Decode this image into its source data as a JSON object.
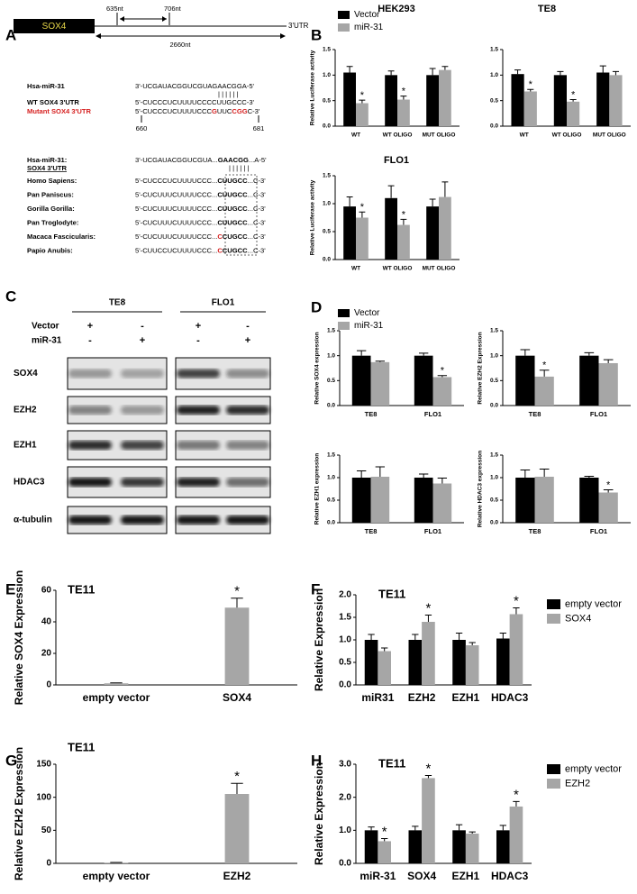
{
  "panel_labels": [
    "A",
    "B",
    "C",
    "D",
    "E",
    "F",
    "G",
    "H"
  ],
  "panel_a": {
    "gene": "SOX4",
    "start": "635nt",
    "end": "706nt",
    "utr": "3'UTR",
    "length": "2660nt",
    "alignment": {
      "mirna_label": "Hsa-miR-31",
      "mirna_seq": "3'-UCGAUACGGUCGUAGAACGGA-5'",
      "pairs": "| | | | | |",
      "wt_label": "WT SOX4 3'UTR",
      "wt_seq": "5'-CUCCCUCUUUUCCCCUUGCCC-3'",
      "mut_label": "Mutant SOX4 3'UTR",
      "mut_seq": [
        {
          "text": "5'-CUCCCUCUUUUCCC"
        },
        {
          "text": "G",
          "style": "red"
        },
        {
          "text": "UUC"
        },
        {
          "text": "CGG",
          "style": "red"
        },
        {
          "text": "C-3'"
        }
      ],
      "pos_start": "660",
      "pos_end": "681"
    },
    "conservation": {
      "mirna_label": "Hsa-miR-31:",
      "mirna_seq": [
        {
          "text": "3'-UCGAUACGGUCGUA..."
        },
        {
          "text": "GAACGG",
          "style": "bold"
        },
        {
          "text": "...A-5'"
        }
      ],
      "utr_label": "SOX4 3'UTR",
      "pairs": "| | | | | |",
      "species": [
        {
          "name": "Homo Sapiens:",
          "seq": [
            {
              "text": "5'-CUCCCUCUUUUCCC..."
            },
            {
              "text": "CUUGCC",
              "style": "bold"
            },
            {
              "text": "...C-3'"
            }
          ]
        },
        {
          "name": "Pan Paniscus:",
          "seq": [
            {
              "text": "5'-CUCUUUCUUUUCCC..."
            },
            {
              "text": "CUUGCC",
              "style": "bold"
            },
            {
              "text": "...C-3'"
            }
          ]
        },
        {
          "name": "Gorilla Gorilla:",
          "seq": [
            {
              "text": "5'-CUCUUUCUUUUCCC..."
            },
            {
              "text": "CUUGCC",
              "style": "bold"
            },
            {
              "text": "...C-3'"
            }
          ]
        },
        {
          "name": "Pan Troglodyte:",
          "seq": [
            {
              "text": "5'-CUCUUUCUUUUCCC..."
            },
            {
              "text": "CUUGCC",
              "style": "bold"
            },
            {
              "text": "...C-3'"
            }
          ]
        },
        {
          "name": "Macaca Fascicularis:",
          "seq": [
            {
              "text": "5'-CUCUUUCUUUUCCC..."
            },
            {
              "text": "C",
              "style": "red"
            },
            {
              "text": "CUGCC",
              "style": "bold"
            },
            {
              "text": "...C-3'"
            }
          ]
        },
        {
          "name": "Papio Anubis:",
          "seq": [
            {
              "text": "5'-CUUCCUCUUUUCCC..."
            },
            {
              "text": "C",
              "style": "red"
            },
            {
              "text": "CUGCC",
              "style": "bold"
            },
            {
              "text": "...C-3'"
            }
          ]
        }
      ]
    }
  },
  "panel_c": {
    "cell_lines": [
      "TE8",
      "FLO1"
    ],
    "treatments": [
      {
        "name": "Vector",
        "signs": [
          "+",
          "-",
          "+",
          "-"
        ]
      },
      {
        "name": "miR-31",
        "signs": [
          "-",
          "+",
          "-",
          "+"
        ]
      }
    ],
    "proteins": [
      "SOX4",
      "EZH2",
      "EZH1",
      "HDAC3",
      "α-tubulin"
    ]
  },
  "chart_data": [
    {
      "type": "bar",
      "title": "HEK293",
      "ylabel": "Relative Luciferase activity",
      "categories": [
        "WT",
        "WT OLIGO",
        "MUT OLIGO"
      ],
      "series": [
        {
          "name": "Vector",
          "color": "#000000",
          "values": [
            1.05,
            1.0,
            1.0
          ],
          "errors": [
            0.12,
            0.08,
            0.13
          ]
        },
        {
          "name": "miR-31",
          "color": "#a6a6a6",
          "values": [
            0.45,
            0.52,
            1.1
          ],
          "errors": [
            0.06,
            0.07,
            0.07
          ],
          "significance": [
            "*",
            "*",
            null
          ]
        }
      ],
      "ylim": [
        0,
        1.5
      ],
      "yticks": [
        {
          "value": 0,
          "label": "0.0"
        },
        0.5,
        {
          "value": 1,
          "label": "1.0"
        },
        1.5
      ]
    },
    {
      "type": "bar",
      "title": "TE8",
      "categories": [
        "WT",
        "WT OLIGO",
        "MUT OLIGO"
      ],
      "series": [
        {
          "color": "#000000",
          "values": [
            1.02,
            1.0,
            1.05
          ],
          "errors": [
            0.08,
            0.07,
            0.13
          ]
        },
        {
          "color": "#a6a6a6",
          "values": [
            0.68,
            0.48,
            1.0
          ],
          "errors": [
            0.04,
            0.04,
            0.07
          ],
          "significance": [
            "*",
            "*",
            null
          ]
        }
      ],
      "ylim": [
        0,
        1.5
      ],
      "yticks": [
        {
          "value": 0,
          "label": "0.0"
        },
        0.5,
        {
          "value": 1,
          "label": "1.0"
        },
        1.5
      ]
    },
    {
      "type": "bar",
      "title": "FLO1",
      "ylabel": "Relative Luciferase activity",
      "categories": [
        "WT",
        "WT OLIGO",
        "MUT OLIGO"
      ],
      "series": [
        {
          "color": "#000000",
          "values": [
            0.95,
            1.1,
            0.95
          ],
          "errors": [
            0.17,
            0.22,
            0.13
          ]
        },
        {
          "color": "#a6a6a6",
          "values": [
            0.75,
            0.62,
            1.12
          ],
          "errors": [
            0.1,
            0.1,
            0.27
          ],
          "significance": [
            "*",
            "*",
            null
          ]
        }
      ],
      "ylim": [
        0,
        1.5
      ],
      "yticks": [
        {
          "value": 0,
          "label": "0.0"
        },
        0.5,
        {
          "value": 1,
          "label": "1.0"
        },
        1.5
      ]
    },
    {
      "type": "bar",
      "ylabel": "Relative SOX4 expression",
      "categories": [
        "TE8",
        "FLO1"
      ],
      "series": [
        {
          "name": "Vector",
          "color": "#000000",
          "values": [
            1.0,
            1.0
          ],
          "errors": [
            0.1,
            0.05
          ]
        },
        {
          "name": "miR-31",
          "color": "#a6a6a6",
          "values": [
            0.87,
            0.57
          ],
          "errors": [
            0.02,
            0.03
          ],
          "significance": [
            null,
            "*"
          ]
        }
      ],
      "ylim": [
        0,
        1.5
      ],
      "yticks": [
        {
          "value": 0,
          "label": "0.0"
        },
        0.5,
        {
          "value": 1,
          "label": "1.0"
        },
        1.5
      ]
    },
    {
      "type": "bar",
      "ylabel": "Relative EZH2 Expression",
      "categories": [
        "TE8",
        "FLO1"
      ],
      "series": [
        {
          "color": "#000000",
          "values": [
            1.0,
            1.0
          ],
          "errors": [
            0.12,
            0.06
          ]
        },
        {
          "color": "#a6a6a6",
          "values": [
            0.58,
            0.85
          ],
          "errors": [
            0.13,
            0.07
          ],
          "significance": [
            "*",
            null
          ]
        }
      ],
      "ylim": [
        0,
        1.5
      ],
      "yticks": [
        {
          "value": 0,
          "label": "0.0"
        },
        0.5,
        {
          "value": 1,
          "label": "1.0"
        },
        1.5
      ]
    },
    {
      "type": "bar",
      "ylabel": "Relative EZH1 expression",
      "categories": [
        "TE8",
        "FLO1"
      ],
      "series": [
        {
          "color": "#000000",
          "values": [
            1.0,
            1.0
          ],
          "errors": [
            0.15,
            0.08
          ]
        },
        {
          "color": "#a6a6a6",
          "values": [
            1.02,
            0.87
          ],
          "errors": [
            0.22,
            0.12
          ]
        }
      ],
      "ylim": [
        0,
        1.5
      ],
      "yticks": [
        {
          "value": 0,
          "label": "0.0"
        },
        0.5,
        {
          "value": 1,
          "label": "1.0"
        },
        1.5
      ]
    },
    {
      "type": "bar",
      "ylabel": "Relative HDAC3 expression",
      "categories": [
        "TE8",
        "FLO1"
      ],
      "series": [
        {
          "color": "#000000",
          "values": [
            1.0,
            1.0
          ],
          "errors": [
            0.17,
            0.03
          ]
        },
        {
          "color": "#a6a6a6",
          "values": [
            1.02,
            0.67
          ],
          "errors": [
            0.17,
            0.06
          ],
          "significance": [
            null,
            "*"
          ]
        }
      ],
      "ylim": [
        0,
        1.5
      ],
      "yticks": [
        {
          "value": 0,
          "label": "0.0"
        },
        0.5,
        {
          "value": 1,
          "label": "1.0"
        },
        1.5
      ]
    },
    {
      "type": "bar",
      "title": "TE11",
      "ylabel": "Relative SOX4 Expression",
      "categories": [
        "empty vector",
        "SOX4"
      ],
      "series": [
        {
          "color": "#a6a6a6",
          "values": [
            1,
            49
          ],
          "errors": [
            0.3,
            6
          ],
          "significance": [
            null,
            "*"
          ]
        }
      ],
      "ylim": [
        0,
        60
      ],
      "yticks": [
        0,
        20,
        40,
        60
      ]
    },
    {
      "type": "bar",
      "title": "TE11",
      "ylabel": "Relative Expression",
      "categories": [
        "miR31",
        "EZH2",
        "EZH1",
        "HDAC3"
      ],
      "series": [
        {
          "name": "empty vector",
          "color": "#000000",
          "values": [
            1.0,
            1.0,
            1.0,
            1.03
          ],
          "errors": [
            0.12,
            0.12,
            0.15,
            0.12
          ]
        },
        {
          "name": "SOX4",
          "color": "#a6a6a6",
          "values": [
            0.75,
            1.4,
            0.88,
            1.57
          ],
          "errors": [
            0.07,
            0.15,
            0.06,
            0.14
          ],
          "significance": [
            null,
            "*",
            null,
            "*"
          ]
        }
      ],
      "ylim": [
        0,
        2
      ],
      "yticks": [
        {
          "value": 0,
          "label": "0.0"
        },
        0.5,
        {
          "value": 1,
          "label": "1.0"
        },
        1.5,
        {
          "value": 2,
          "label": "2.0"
        }
      ]
    },
    {
      "type": "bar",
      "title": "TE11",
      "ylabel": "Relative EZH2 Expression",
      "categories": [
        "empty vector",
        "EZH2"
      ],
      "series": [
        {
          "color": "#a6a6a6",
          "values": [
            1,
            105
          ],
          "errors": [
            0.3,
            16
          ],
          "significance": [
            null,
            "*"
          ]
        }
      ],
      "ylim": [
        0,
        150
      ],
      "yticks": [
        0,
        50,
        100,
        150
      ]
    },
    {
      "type": "bar",
      "title": "TE11",
      "ylabel": "Relative Expression",
      "categories": [
        "miR-31",
        "SOX4",
        "EZH1",
        "HDAC3"
      ],
      "series": [
        {
          "name": "empty vector",
          "color": "#000000",
          "values": [
            1.0,
            1.0,
            1.0,
            1.0
          ],
          "errors": [
            0.1,
            0.12,
            0.17,
            0.15
          ]
        },
        {
          "name": "EZH2",
          "color": "#a6a6a6",
          "values": [
            0.67,
            2.58,
            0.9,
            1.72
          ],
          "errors": [
            0.08,
            0.08,
            0.05,
            0.15
          ],
          "significance": [
            "*",
            "*",
            null,
            "*"
          ]
        }
      ],
      "ylim": [
        0,
        3
      ],
      "yticks": [
        {
          "value": 0,
          "label": "0.0"
        },
        {
          "value": 1,
          "label": "1.0"
        },
        {
          "value": 2,
          "label": "2.0"
        },
        {
          "value": 3,
          "label": "3.0"
        }
      ]
    }
  ]
}
